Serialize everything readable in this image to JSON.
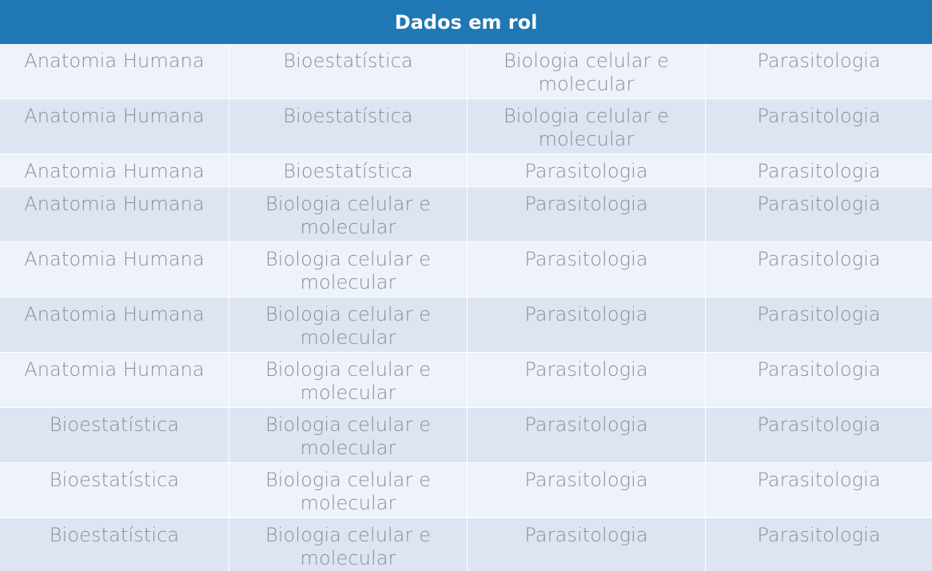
{
  "table": {
    "title": "Dados em rol",
    "rows": [
      [
        "Anatomia Humana",
        "Bioestatística",
        "Biologia celular e molecular",
        "Parasitologia"
      ],
      [
        "Anatomia Humana",
        "Bioestatística",
        "Biologia celular e molecular",
        "Parasitologia"
      ],
      [
        "Anatomia Humana",
        "Bioestatística",
        "Parasitologia",
        "Parasitologia"
      ],
      [
        "Anatomia Humana",
        "Biologia celular e molecular",
        "Parasitologia",
        "Parasitologia"
      ],
      [
        "Anatomia Humana",
        "Biologia celular e molecular",
        "Parasitologia",
        "Parasitologia"
      ],
      [
        "Anatomia Humana",
        "Biologia celular e molecular",
        "Parasitologia",
        "Parasitologia"
      ],
      [
        "Anatomia Humana",
        "Biologia celular e molecular",
        "Parasitologia",
        "Parasitologia"
      ],
      [
        "Bioestatística",
        "Biologia celular e molecular",
        "Parasitologia",
        "Parasitologia"
      ],
      [
        "Bioestatística",
        "Biologia celular e molecular",
        "Parasitologia",
        "Parasitologia"
      ],
      [
        "Bioestatística",
        "Biologia celular e molecular",
        "Parasitologia",
        "Parasitologia"
      ]
    ]
  },
  "colors": {
    "header_bg": "#1f78b4",
    "header_text": "#ffffff",
    "row_light": "#eef2fa",
    "row_dark": "#dde5f2",
    "cell_text": "#8a8d96"
  }
}
